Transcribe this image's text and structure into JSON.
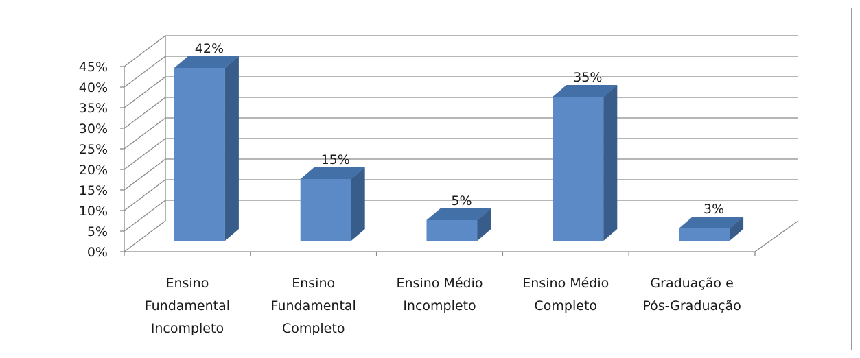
{
  "chart_data": {
    "type": "bar",
    "subtype": "3d-column",
    "categories": [
      [
        "Ensino",
        "Fundamental",
        "Incompleto"
      ],
      [
        "Ensino",
        "Fundamental",
        "Completo"
      ],
      [
        "Ensino Médio",
        "Incompleto"
      ],
      [
        "Ensino Médio",
        "Completo"
      ],
      [
        "Graduação e",
        "Pós-Graduação"
      ]
    ],
    "values": [
      42,
      15,
      5,
      35,
      3
    ],
    "data_labels": [
      "42%",
      "15%",
      "5%",
      "35%",
      "3%"
    ],
    "ylim": [
      0,
      45
    ],
    "yticks": [
      0,
      5,
      10,
      15,
      20,
      25,
      30,
      35,
      40,
      45
    ],
    "ytick_labels": [
      "0%",
      "5%",
      "10%",
      "15%",
      "20%",
      "25%",
      "30%",
      "35%",
      "40%",
      "45%"
    ],
    "grid": true,
    "legend": "none",
    "colors": {
      "bar_front": "#5b8ac6",
      "bar_top": "#4470a8",
      "bar_side": "#385d8a",
      "grid": "#8a8a8a",
      "frame": "#9a9a9a"
    }
  }
}
